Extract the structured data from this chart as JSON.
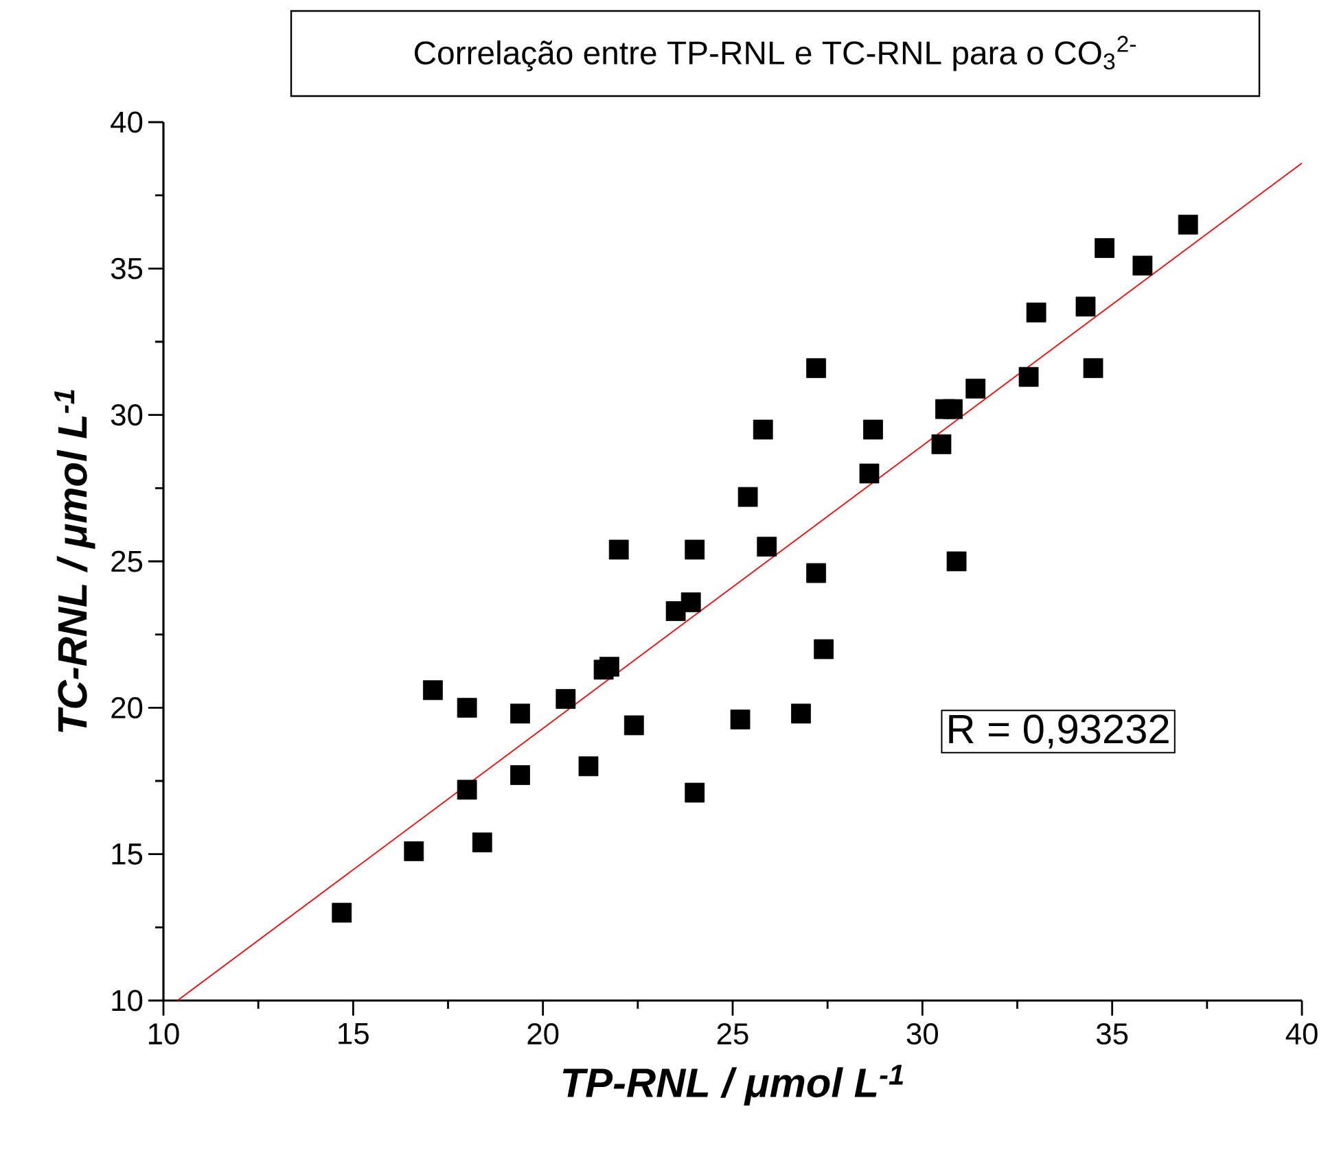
{
  "chart_data": {
    "type": "scatter",
    "title": "Correlação entre TP-RNL e TC-RNL para o CO$_{3}$$^{2-}$",
    "xlabel": "TP-RNL / μmol L$^{-1}$",
    "ylabel": "TC-RNL / μmol L$^{-1}$",
    "annotations": [
      "R = 0,93232"
    ],
    "xlim": [
      10,
      40
    ],
    "ylim": [
      10,
      40
    ],
    "xticks": [
      10,
      15,
      20,
      25,
      30,
      35,
      40
    ],
    "yticks": [
      10,
      15,
      20,
      25,
      30,
      35,
      40
    ],
    "grid": false,
    "series": [
      {
        "color": "#000000",
        "marker": "square",
        "x": [
          14.7,
          16.6,
          17.1,
          18.0,
          18.0,
          18.4,
          19.4,
          19.4,
          20.6,
          21.2,
          21.6,
          21.75,
          22.4,
          22.0,
          24.0,
          23.5,
          23.9,
          24.0,
          25.2,
          25.4,
          25.8,
          25.9,
          26.8,
          27.2,
          27.2,
          27.4,
          28.6,
          28.7,
          30.5,
          30.6,
          30.8,
          30.9,
          31.4,
          32.8,
          33.0,
          34.3,
          34.5,
          34.8,
          35.8,
          37.0
        ],
        "values": [
          13.0,
          15.1,
          20.6,
          20.0,
          17.2,
          15.4,
          19.8,
          17.7,
          20.3,
          18.0,
          21.3,
          21.4,
          19.4,
          25.4,
          17.1,
          23.3,
          23.6,
          25.4,
          19.6,
          27.2,
          29.5,
          25.5,
          19.8,
          31.6,
          24.6,
          22.0,
          28.0,
          29.5,
          29.0,
          30.2,
          30.2,
          25.0,
          30.9,
          31.3,
          33.5,
          33.7,
          31.6,
          35.7,
          35.1,
          36.5
        ]
      },
      {
        "type": "line",
        "color": "#ff0000",
        "x": [
          10.37,
          40
        ],
        "values": [
          10,
          38.6
        ]
      }
    ]
  }
}
